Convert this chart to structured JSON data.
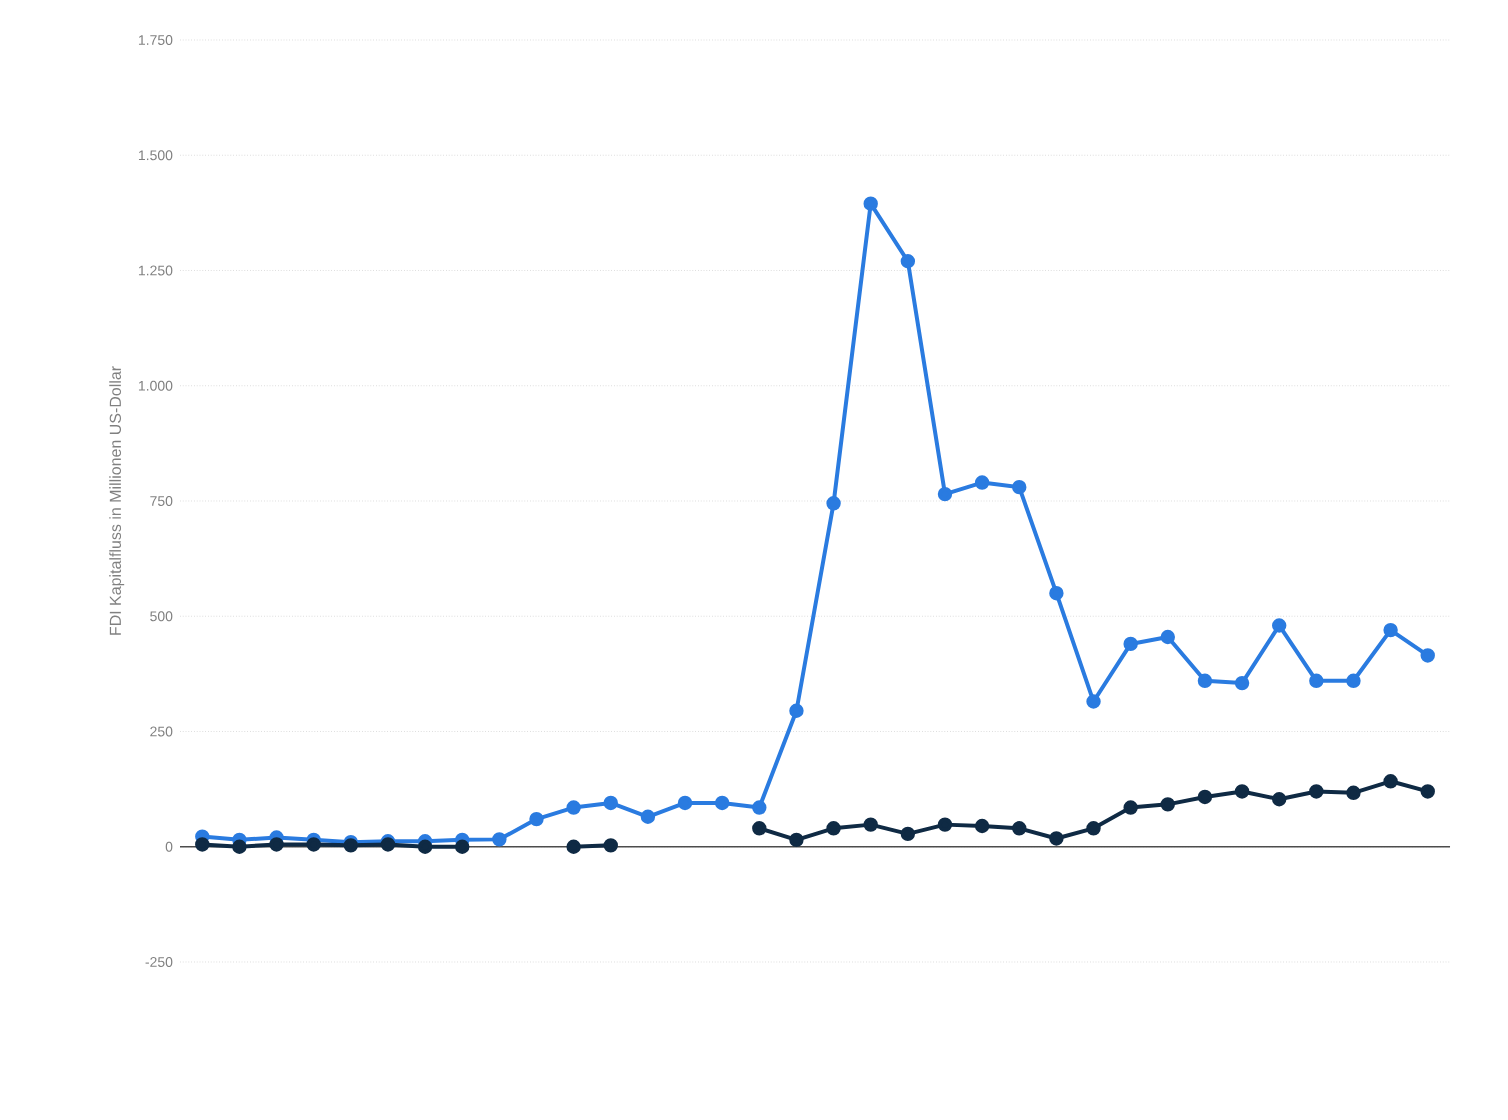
{
  "chart_data": {
    "type": "line",
    "ylabel": "FDI Kapitalfluss in Millionen US-Dollar",
    "categories": [
      null,
      null,
      null,
      null,
      null,
      null,
      null,
      null,
      null,
      null,
      null,
      null,
      null,
      null,
      null,
      null,
      null,
      null,
      null,
      null,
      null,
      null,
      null,
      null,
      null,
      null,
      null,
      null,
      null,
      null,
      null,
      null,
      null,
      null
    ],
    "series": [
      {
        "color": "#2a7be0",
        "values": [
          22,
          15,
          20,
          15,
          10,
          12,
          12,
          15,
          16,
          60,
          85,
          95,
          65,
          95,
          95,
          85,
          295,
          745,
          1395,
          1270,
          765,
          790,
          780,
          550,
          315,
          440,
          455,
          360,
          355,
          480,
          360,
          360,
          470,
          415
        ]
      },
      {
        "color": "#0f2a44",
        "values": [
          5,
          0,
          5,
          5,
          3,
          5,
          0,
          0,
          null,
          null,
          0,
          3,
          null,
          null,
          null,
          40,
          15,
          40,
          48,
          28,
          48,
          45,
          40,
          18,
          40,
          85,
          92,
          108,
          120,
          103,
          120,
          117,
          142,
          120
        ]
      }
    ],
    "ylim": [
      -250,
      1750
    ],
    "yticks": [
      {
        "value": -250,
        "label": "-250"
      },
      0,
      250,
      500,
      750,
      {
        "value": 1000,
        "label": "1.000"
      },
      {
        "value": 1250,
        "label": "1.250"
      },
      {
        "value": 1500,
        "label": "1.500"
      },
      {
        "value": 1750,
        "label": "1.750"
      }
    ],
    "grid": "y",
    "marker": "circle",
    "line_style": "solid"
  }
}
